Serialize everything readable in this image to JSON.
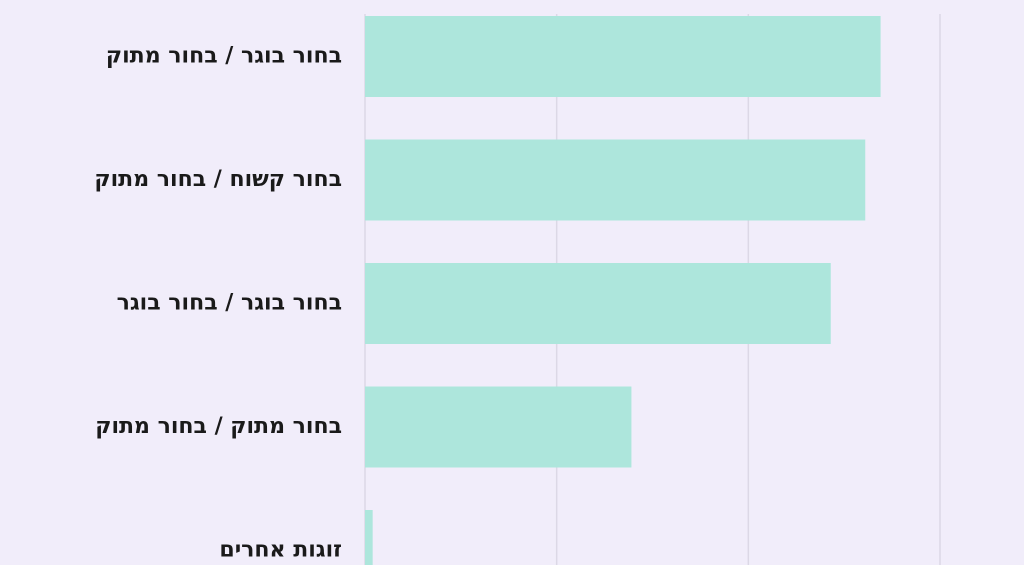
{
  "chart_data": {
    "type": "barh",
    "categories": [
      "בחור בוגר / בחור מתוק",
      "בחור קשוח / בחור מתוק",
      "בחור בוגר / בחור בוגר",
      "בחור מתוק / בחור מתוק",
      "זוגות אחרים"
    ],
    "values": [
      2.69,
      2.61,
      2.43,
      1.39,
      0.04
    ],
    "color": "#ade6dc",
    "xlim": [
      0,
      3
    ],
    "grid_lines": [
      0,
      1,
      2,
      3
    ],
    "grid": true
  }
}
